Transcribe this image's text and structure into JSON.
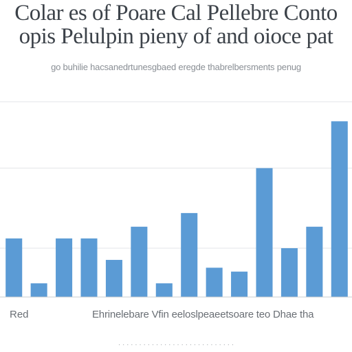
{
  "header": {
    "title_line1": "Colar es of Poare Cal Pellebre Conto",
    "title_line2": "opis Pelulpin pieny of and oioce pat",
    "subtitle": "go buhilie hacsanedrtunesgbaed eregde thabrelbersments penug"
  },
  "footer": {
    "xlabel_left": "Red",
    "xlabel_main": "Ehrinelebare Vfin eeloslpeaeetsoare teo Dhae tha",
    "footnote": "· · · · ·  · · · ·  · · · · · ·  · · · ·  · · · · ·  · · · ·"
  },
  "chart_data": {
    "type": "bar",
    "title": "Colar es of Poare Cal Pellebre Conto opis Pelulpin pieny of and oioce pat",
    "xlabel": "",
    "ylabel": "",
    "ylim": [
      0,
      100
    ],
    "grid": true,
    "bar_color": "#5b9bd5",
    "values": [
      30,
      7,
      30,
      30,
      19,
      36,
      7,
      43,
      15,
      13,
      66,
      25,
      36,
      90
    ]
  }
}
